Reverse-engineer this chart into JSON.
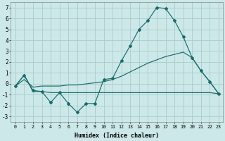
{
  "xlabel": "Humidex (Indice chaleur)",
  "xlim": [
    -0.5,
    23.5
  ],
  "ylim": [
    -3.5,
    7.5
  ],
  "xticks": [
    0,
    1,
    2,
    3,
    4,
    5,
    6,
    7,
    8,
    9,
    10,
    11,
    12,
    13,
    14,
    15,
    16,
    17,
    18,
    19,
    20,
    21,
    22,
    23
  ],
  "yticks": [
    -3,
    -2,
    -1,
    0,
    1,
    2,
    3,
    4,
    5,
    6,
    7
  ],
  "background_color": "#cce8e8",
  "grid_color": "#aacccc",
  "line_color": "#1a6b6b",
  "line1_x": [
    0,
    1,
    2,
    3,
    4,
    5,
    6,
    7,
    8,
    9,
    10,
    11,
    12,
    13,
    14,
    15,
    16,
    17,
    18,
    19,
    20,
    21,
    22,
    23
  ],
  "line1_y": [
    -0.2,
    0.8,
    -0.6,
    -0.7,
    -1.7,
    -0.8,
    -1.8,
    -2.6,
    -1.8,
    -1.8,
    0.4,
    0.5,
    2.1,
    3.5,
    5.0,
    5.8,
    7.0,
    6.9,
    5.8,
    4.3,
    2.4,
    1.2,
    0.2,
    -0.9
  ],
  "line2_x": [
    0,
    1,
    2,
    3,
    4,
    5,
    6,
    7,
    8,
    9,
    10,
    11,
    12,
    13,
    14,
    15,
    16,
    17,
    18,
    19,
    20,
    21,
    22,
    23
  ],
  "line2_y": [
    -0.2,
    0.8,
    -0.7,
    -0.7,
    -0.8,
    -0.8,
    -0.8,
    -0.8,
    -0.8,
    -0.8,
    -0.8,
    -0.8,
    -0.8,
    -0.8,
    -0.8,
    -0.8,
    -0.8,
    -0.8,
    -0.8,
    -0.8,
    -0.8,
    -0.8,
    -0.8,
    -0.9
  ],
  "line3_x": [
    0,
    1,
    2,
    3,
    4,
    5,
    6,
    7,
    8,
    9,
    10,
    11,
    12,
    13,
    14,
    15,
    16,
    17,
    18,
    19,
    20,
    21,
    22,
    23
  ],
  "line3_y": [
    -0.2,
    0.4,
    -0.3,
    -0.2,
    -0.2,
    -0.2,
    -0.1,
    -0.1,
    0.0,
    0.1,
    0.2,
    0.4,
    0.7,
    1.1,
    1.5,
    1.9,
    2.2,
    2.5,
    2.7,
    2.9,
    2.4,
    1.2,
    0.2,
    -0.9
  ],
  "figwidth": 3.2,
  "figheight": 2.0,
  "dpi": 100
}
